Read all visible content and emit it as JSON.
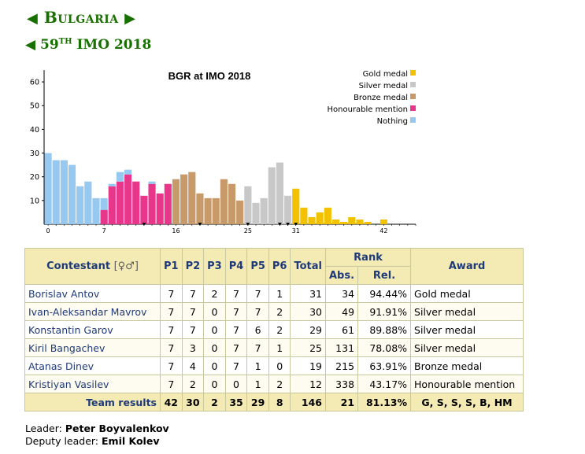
{
  "header": {
    "country": "Bulgaria",
    "olympiad_num": "59",
    "olympiad_sup": "TH",
    "olympiad_rest": "IMO 2018",
    "arrow_left": "◀",
    "arrow_right": "▶"
  },
  "chart_data": {
    "type": "bar",
    "title": "BGR at IMO 2018",
    "ylim": [
      0,
      65
    ],
    "yticks": [
      10,
      20,
      30,
      40,
      50,
      60
    ],
    "xticks": [
      0,
      7,
      16,
      25,
      31,
      42
    ],
    "xlim": [
      -0.5,
      46
    ],
    "legend_position": "top-right",
    "legend": [
      {
        "name": "Gold medal",
        "color": "#f2c200"
      },
      {
        "name": "Silver medal",
        "color": "#c8c8c8"
      },
      {
        "name": "Bronze medal",
        "color": "#c89a6a"
      },
      {
        "name": "Honourable mention",
        "color": "#e8368a"
      },
      {
        "name": "Nothing",
        "color": "#96c8f0"
      }
    ],
    "colors": {
      "gold": "#f2c200",
      "silver": "#c8c8c8",
      "bronze": "#c89a6a",
      "hm": "#e8368a",
      "nothing": "#96c8f0"
    },
    "bars": [
      {
        "x": 0,
        "c": "nothing",
        "v": 30
      },
      {
        "x": 1,
        "c": "nothing",
        "v": 27
      },
      {
        "x": 2,
        "c": "nothing",
        "v": 27
      },
      {
        "x": 3,
        "c": "nothing",
        "v": 25
      },
      {
        "x": 4,
        "c": "nothing",
        "v": 16
      },
      {
        "x": 5,
        "c": "nothing",
        "v": 18
      },
      {
        "x": 6,
        "c": "nothing",
        "v": 11
      },
      {
        "x": 7,
        "c": "nothing",
        "v": 11
      },
      {
        "x": 7,
        "c": "hm",
        "v": 6
      },
      {
        "x": 8,
        "c": "hm",
        "v": 16,
        "nothing": 1
      },
      {
        "x": 9,
        "c": "hm",
        "v": 18,
        "nothing": 4
      },
      {
        "x": 10,
        "c": "hm",
        "v": 21,
        "nothing": 2
      },
      {
        "x": 11,
        "c": "hm",
        "v": 18
      },
      {
        "x": 12,
        "c": "hm",
        "v": 12
      },
      {
        "x": 13,
        "c": "hm",
        "v": 17,
        "nothing": 1
      },
      {
        "x": 14,
        "c": "hm",
        "v": 13
      },
      {
        "x": 15,
        "c": "hm",
        "v": 17
      },
      {
        "x": 16,
        "c": "bronze",
        "v": 19
      },
      {
        "x": 17,
        "c": "bronze",
        "v": 21
      },
      {
        "x": 18,
        "c": "bronze",
        "v": 22
      },
      {
        "x": 19,
        "c": "bronze",
        "v": 13
      },
      {
        "x": 20,
        "c": "bronze",
        "v": 11
      },
      {
        "x": 21,
        "c": "bronze",
        "v": 11
      },
      {
        "x": 22,
        "c": "bronze",
        "v": 19
      },
      {
        "x": 23,
        "c": "bronze",
        "v": 17
      },
      {
        "x": 24,
        "c": "bronze",
        "v": 10
      },
      {
        "x": 25,
        "c": "silver",
        "v": 16
      },
      {
        "x": 26,
        "c": "silver",
        "v": 9
      },
      {
        "x": 27,
        "c": "silver",
        "v": 11
      },
      {
        "x": 28,
        "c": "silver",
        "v": 24
      },
      {
        "x": 29,
        "c": "silver",
        "v": 26
      },
      {
        "x": 30,
        "c": "silver",
        "v": 12
      },
      {
        "x": 31,
        "c": "gold",
        "v": 15
      },
      {
        "x": 32,
        "c": "gold",
        "v": 7
      },
      {
        "x": 33,
        "c": "gold",
        "v": 3
      },
      {
        "x": 34,
        "c": "gold",
        "v": 5
      },
      {
        "x": 35,
        "c": "gold",
        "v": 7
      },
      {
        "x": 36,
        "c": "gold",
        "v": 2
      },
      {
        "x": 37,
        "c": "gold",
        "v": 1
      },
      {
        "x": 38,
        "c": "gold",
        "v": 3
      },
      {
        "x": 39,
        "c": "gold",
        "v": 2
      },
      {
        "x": 40,
        "c": "gold",
        "v": 1
      },
      {
        "x": 42,
        "c": "gold",
        "v": 2
      }
    ],
    "markers": [
      12,
      19,
      25,
      29,
      30,
      31
    ]
  },
  "table": {
    "headers": {
      "contestant": "Contestant",
      "sex": "[♀♂]",
      "p1": "P1",
      "p2": "P2",
      "p3": "P3",
      "p4": "P4",
      "p5": "P5",
      "p6": "P6",
      "total": "Total",
      "rank": "Rank",
      "abs": "Abs.",
      "rel": "Rel.",
      "award": "Award"
    },
    "rows": [
      {
        "name": "Borislav Antov",
        "p1": "7",
        "p2": "7",
        "p3": "2",
        "p4": "7",
        "p5": "7",
        "p6": "1",
        "total": "31",
        "abs": "34",
        "rel": "94.44%",
        "award": "Gold medal"
      },
      {
        "name": "Ivan-Aleksandar Mavrov",
        "p1": "7",
        "p2": "7",
        "p3": "0",
        "p4": "7",
        "p5": "7",
        "p6": "2",
        "total": "30",
        "abs": "49",
        "rel": "91.91%",
        "award": "Silver medal"
      },
      {
        "name": "Konstantin Garov",
        "p1": "7",
        "p2": "7",
        "p3": "0",
        "p4": "7",
        "p5": "6",
        "p6": "2",
        "total": "29",
        "abs": "61",
        "rel": "89.88%",
        "award": "Silver medal"
      },
      {
        "name": "Kiril Bangachev",
        "p1": "7",
        "p2": "3",
        "p3": "0",
        "p4": "7",
        "p5": "7",
        "p6": "1",
        "total": "25",
        "abs": "131",
        "rel": "78.08%",
        "award": "Silver medal"
      },
      {
        "name": "Atanas Dinev",
        "p1": "7",
        "p2": "4",
        "p3": "0",
        "p4": "7",
        "p5": "1",
        "p6": "0",
        "total": "19",
        "abs": "215",
        "rel": "63.91%",
        "award": "Bronze medal"
      },
      {
        "name": "Kristiyan Vasilev",
        "p1": "7",
        "p2": "2",
        "p3": "0",
        "p4": "0",
        "p5": "1",
        "p6": "2",
        "total": "12",
        "abs": "338",
        "rel": "43.17%",
        "award": "Honourable mention"
      }
    ],
    "team": {
      "label": "Team results",
      "p1": "42",
      "p2": "30",
      "p3": "2",
      "p4": "35",
      "p5": "29",
      "p6": "8",
      "total": "146",
      "abs": "21",
      "rel": "81.13%",
      "award": "G, S, S, S, B, HM"
    }
  },
  "leaders": {
    "leader_label": "Leader:",
    "leader_name": "Peter Boyvalenkov",
    "deputy_label": "Deputy leader:",
    "deputy_name": "Emil Kolev"
  }
}
